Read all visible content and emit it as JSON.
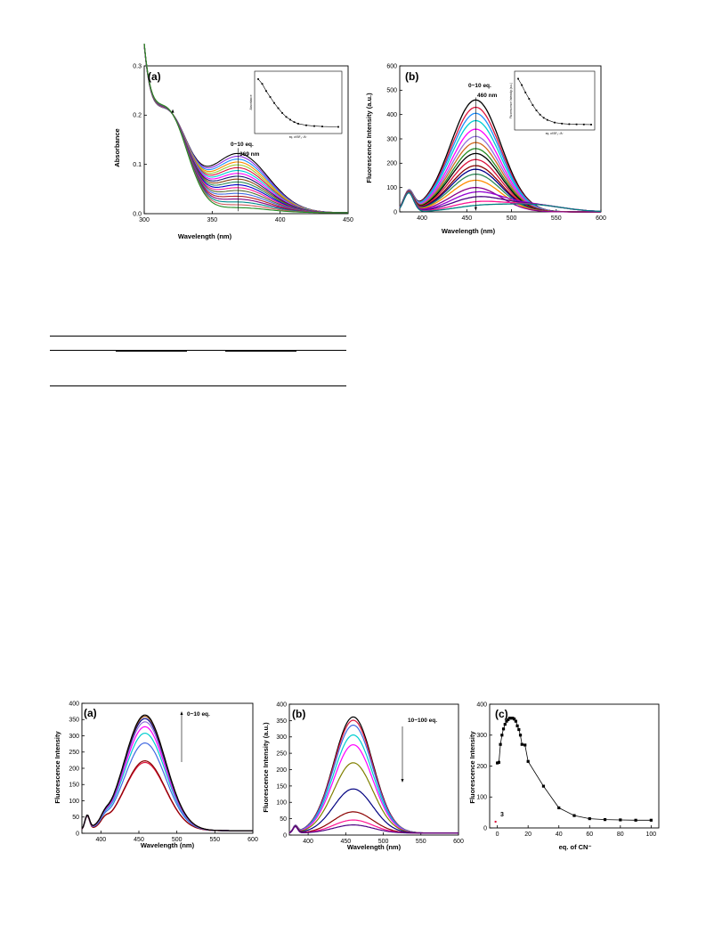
{
  "figures": {
    "abs": {
      "panel": "(a)",
      "xlabel": "Wavelength (nm)",
      "ylabel": "Absorbance",
      "annotation_range": "0~10 eq.",
      "annotation_peak": "369 nm",
      "inset_ylabel": "Absorbance",
      "inset_xlabel": "eq. of BF₄⁻/A⁻"
    },
    "flu": {
      "panel": "(b)",
      "xlabel": "Wavelength (nm)",
      "ylabel": "Fluorescence Intensity (a.u.)",
      "annotation_range": "0~10 eq.",
      "annotation_peak": "460 nm",
      "inset_ylabel": "Fluorescence Intensity (a.u.)",
      "inset_xlabel": "eq. of BF₄⁻/A⁻"
    },
    "cn_a": {
      "panel": "(a)",
      "xlabel": "Wavelength (nm)",
      "ylabel": "Fluorescence Intensity",
      "annotation_range": "0~10 eq."
    },
    "cn_b": {
      "panel": "(b)",
      "xlabel": "Wavelength (nm)",
      "ylabel": "Fluorescence Intensity (a.u.)",
      "annotation_range": "10~100 eq."
    },
    "cn_c": {
      "panel": "(c)",
      "xlabel": "eq. of CN⁻",
      "ylabel": "Fluorescence Intensity",
      "marker_label": "3"
    }
  },
  "chart_data": [
    {
      "id": "abs",
      "type": "line",
      "xlim": [
        300,
        450
      ],
      "ylim": [
        0,
        0.3
      ],
      "xticks": [
        300,
        350,
        400,
        450
      ],
      "yticks": [
        0.0,
        0.1,
        0.2,
        0.3
      ],
      "series_count": 20,
      "band_peak_nm": 369,
      "band_start": 0.12,
      "band_end": 0.01,
      "short_band_start": 0.18,
      "short_band_end": 0.19,
      "isosbestic_nm": 338,
      "colors": [
        "#000000",
        "#8b2be2",
        "#1e90ff",
        "#ff8c00",
        "#9acd32",
        "#dc143c",
        "#00ced1",
        "#ff00ff",
        "#191970",
        "#8b4513",
        "#2e8b57",
        "#0000cd",
        "#ff1493",
        "#556b2f",
        "#4169e1",
        "#b22222",
        "#800080",
        "#008b8b",
        "#cd5c5c",
        "#228b22"
      ],
      "inset": {
        "x": [
          0,
          0.5,
          1,
          1.5,
          2,
          2.5,
          3,
          3.5,
          4,
          4.5,
          5,
          6,
          7,
          8,
          10
        ],
        "y": [
          0.13,
          0.118,
          0.1,
          0.085,
          0.07,
          0.057,
          0.045,
          0.035,
          0.028,
          0.022,
          0.018,
          0.014,
          0.012,
          0.011,
          0.01
        ]
      }
    },
    {
      "id": "flu",
      "type": "line",
      "xlim": [
        375,
        600
      ],
      "ylim": [
        0,
        600
      ],
      "xticks": [
        400,
        450,
        500,
        550,
        600
      ],
      "yticks": [
        0,
        100,
        200,
        300,
        400,
        500,
        600
      ],
      "peak_nm": 460,
      "peaks": [
        460,
        430,
        405,
        375,
        340,
        310,
        285,
        260,
        240,
        215,
        190,
        175,
        155,
        130,
        100,
        75,
        55,
        35,
        20
      ],
      "colors": [
        "#000000",
        "#dc143c",
        "#1e90ff",
        "#00ced1",
        "#ff00ff",
        "#9370db",
        "#d2691e",
        "#228b22",
        "#000000",
        "#dc143c",
        "#8b0000",
        "#00008b",
        "#2e8b57",
        "#ff8c00",
        "#8b008b",
        "#9400d3",
        "#4b0082",
        "#ff1493",
        "#008080"
      ],
      "inset": {
        "x": [
          0,
          0.5,
          1,
          1.5,
          2,
          2.5,
          3,
          3.5,
          4,
          5,
          6,
          7,
          8,
          9,
          10
        ],
        "y": [
          460,
          400,
          330,
          270,
          210,
          160,
          120,
          90,
          70,
          45,
          35,
          30,
          28,
          27,
          26
        ]
      }
    },
    {
      "id": "cn_a",
      "type": "line",
      "xlim": [
        375,
        600
      ],
      "ylim": [
        0,
        400
      ],
      "xticks": [
        400,
        450,
        500,
        550,
        600
      ],
      "yticks": [
        0,
        50,
        100,
        150,
        200,
        250,
        300,
        350,
        400
      ],
      "peak_nm": 458,
      "peaks": [
        210,
        215,
        270,
        300,
        320,
        335,
        345,
        352,
        356
      ],
      "colors": [
        "#dc143c",
        "#8b0000",
        "#4169e1",
        "#00ced1",
        "#ff00ff",
        "#9370db",
        "#000080",
        "#8b4513",
        "#000000"
      ]
    },
    {
      "id": "cn_b",
      "type": "line",
      "xlim": [
        375,
        600
      ],
      "ylim": [
        0,
        400
      ],
      "xticks": [
        400,
        450,
        500,
        550,
        600
      ],
      "yticks": [
        0,
        50,
        100,
        150,
        200,
        250,
        300,
        350,
        400
      ],
      "peak_nm": 460,
      "peaks": [
        355,
        345,
        330,
        300,
        270,
        215,
        135,
        65,
        40,
        25
      ],
      "colors": [
        "#000000",
        "#dc143c",
        "#4169e1",
        "#00ced1",
        "#ff00ff",
        "#808000",
        "#000080",
        "#8b0000",
        "#ff1493",
        "#4b0082"
      ]
    },
    {
      "id": "cn_c",
      "type": "line",
      "xlim": [
        -5,
        105
      ],
      "ylim": [
        0,
        400
      ],
      "xticks": [
        0,
        20,
        40,
        60,
        80,
        100
      ],
      "yticks": [
        0,
        100,
        200,
        300,
        400
      ],
      "x": [
        0,
        1,
        2,
        3,
        4,
        5,
        6,
        7,
        8,
        9,
        10,
        11,
        12,
        13,
        14,
        15,
        16,
        18,
        20,
        30,
        40,
        50,
        60,
        70,
        80,
        90,
        100
      ],
      "y": [
        210,
        212,
        270,
        300,
        320,
        335,
        345,
        350,
        355,
        355,
        355,
        352,
        345,
        330,
        318,
        300,
        270,
        268,
        215,
        135,
        65,
        40,
        30,
        27,
        26,
        25,
        25
      ],
      "marker_point": [
        0,
        20
      ]
    }
  ]
}
